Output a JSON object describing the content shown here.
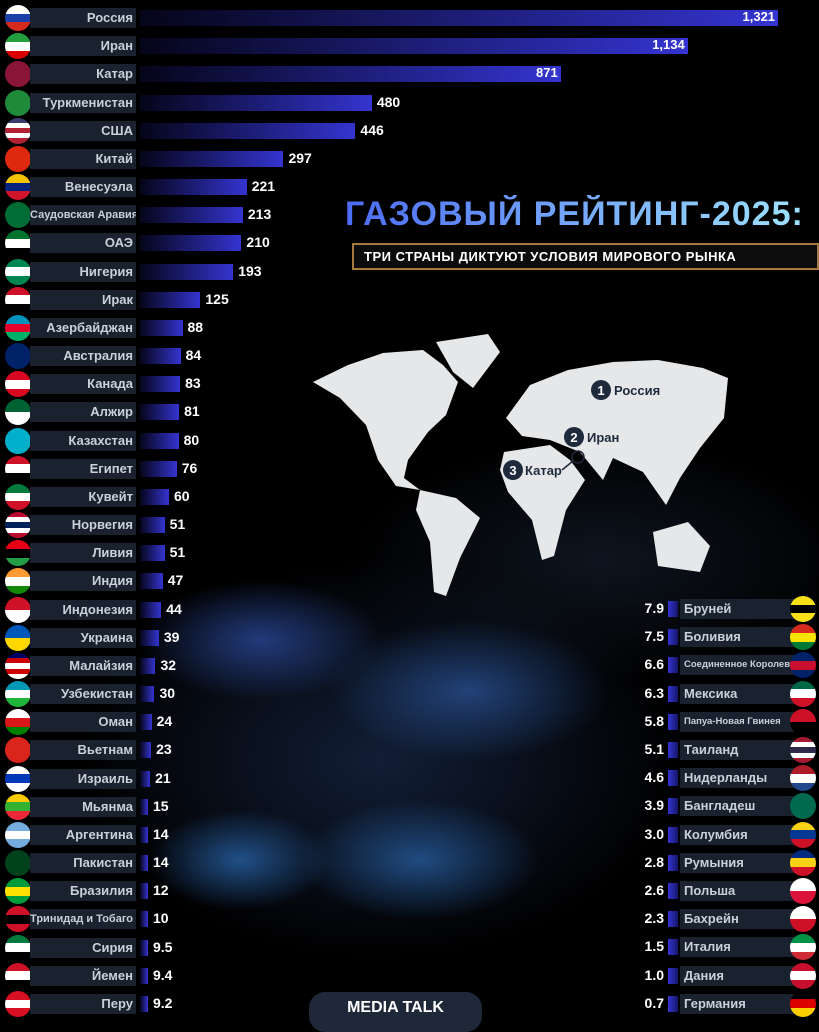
{
  "title": "ГАЗОВЫЙ РЕЙТИНГ-2025:",
  "subtitle": "ТРИ СТРАНЫ ДИКТУЮТ УСЛОВИЯ МИРОВОГО РЫНКА",
  "footer": "MEDIA TALK",
  "colors": {
    "bar_start": "#05051a",
    "bar_end": "#3434d0",
    "label_bg": "#1a2230",
    "title_from": "#4c6cf5",
    "title_to": "#9ee3ff",
    "accent_border": "#a57a3c"
  },
  "map": {
    "markers": [
      {
        "rank": "1",
        "name": "Россия"
      },
      {
        "rank": "2",
        "name": "Иран"
      },
      {
        "rank": "3",
        "name": "Катар"
      }
    ]
  },
  "chart_data": {
    "type": "bar",
    "orientation": "horizontal",
    "left": [
      {
        "name": "Россия",
        "value": 1321,
        "label": "1,321",
        "flag": [
          "#fff",
          "#1c3fa8",
          "#d52b1e"
        ]
      },
      {
        "name": "Иран",
        "value": 1134,
        "label": "1,134",
        "flag": [
          "#239f40",
          "#fff",
          "#da0000"
        ]
      },
      {
        "name": "Катар",
        "value": 871,
        "label": "871",
        "flag": [
          "#8a1538"
        ]
      },
      {
        "name": "Туркменистан",
        "value": 480,
        "label": "480",
        "flag": [
          "#1f8a3a"
        ]
      },
      {
        "name": "США",
        "value": 446,
        "label": "446",
        "flag": [
          "#3c3b6e",
          "#fff",
          "#b22234",
          "#fff",
          "#b22234"
        ]
      },
      {
        "name": "Китай",
        "value": 297,
        "label": "297",
        "flag": [
          "#de2910"
        ]
      },
      {
        "name": "Венесуэла",
        "value": 221,
        "label": "221",
        "flag": [
          "#f4c300",
          "#00247d",
          "#cf142b"
        ]
      },
      {
        "name": "Саудовская Аравия",
        "value": 213,
        "label": "213",
        "flag": [
          "#006c35"
        ]
      },
      {
        "name": "ОАЭ",
        "value": 210,
        "label": "210",
        "flag": [
          "#00732f",
          "#fff",
          "#000"
        ]
      },
      {
        "name": "Нигерия",
        "value": 193,
        "label": "193",
        "flag": [
          "#008751",
          "#fff",
          "#008751"
        ]
      },
      {
        "name": "Ирак",
        "value": 125,
        "label": "125",
        "flag": [
          "#ce1126",
          "#fff",
          "#000"
        ]
      },
      {
        "name": "Азербайджан",
        "value": 88,
        "label": "88",
        "flag": [
          "#0092bc",
          "#e4002b",
          "#00af66"
        ]
      },
      {
        "name": "Австралия",
        "value": 84,
        "label": "84",
        "flag": [
          "#012169"
        ]
      },
      {
        "name": "Канада",
        "value": 83,
        "label": "83",
        "flag": [
          "#d80621",
          "#fff",
          "#d80621"
        ]
      },
      {
        "name": "Алжир",
        "value": 81,
        "label": "81",
        "flag": [
          "#006233",
          "#fff"
        ]
      },
      {
        "name": "Казахстан",
        "value": 80,
        "label": "80",
        "flag": [
          "#00afca"
        ]
      },
      {
        "name": "Египет",
        "value": 76,
        "label": "76",
        "flag": [
          "#ce1126",
          "#fff",
          "#000"
        ]
      },
      {
        "name": "Кувейт",
        "value": 60,
        "label": "60",
        "flag": [
          "#007a3d",
          "#fff",
          "#ce1126"
        ]
      },
      {
        "name": "Норвегия",
        "value": 51,
        "label": "51",
        "flag": [
          "#ba0c2f",
          "#fff",
          "#00205b",
          "#fff",
          "#ba0c2f"
        ]
      },
      {
        "name": "Ливия",
        "value": 51,
        "label": "51",
        "flag": [
          "#e70013",
          "#000",
          "#239e46"
        ]
      },
      {
        "name": "Индия",
        "value": 47,
        "label": "47",
        "flag": [
          "#ff9933",
          "#fff",
          "#138808"
        ]
      },
      {
        "name": "Индонезия",
        "value": 44,
        "label": "44",
        "flag": [
          "#ce1126",
          "#fff"
        ]
      },
      {
        "name": "Украина",
        "value": 39,
        "label": "39",
        "flag": [
          "#0057b7",
          "#ffd700"
        ]
      },
      {
        "name": "Малайзия",
        "value": 32,
        "label": "32",
        "flag": [
          "#010066",
          "#cc0001",
          "#fff",
          "#cc0001",
          "#fff"
        ]
      },
      {
        "name": "Узбекистан",
        "value": 30,
        "label": "30",
        "flag": [
          "#0099b5",
          "#fff",
          "#1eb53a"
        ]
      },
      {
        "name": "Оман",
        "value": 24,
        "label": "24",
        "flag": [
          "#fff",
          "#db161b",
          "#008000"
        ]
      },
      {
        "name": "Вьетнам",
        "value": 23,
        "label": "23",
        "flag": [
          "#da251d"
        ]
      },
      {
        "name": "Израиль",
        "value": 21,
        "label": "21",
        "flag": [
          "#fff",
          "#0038b8",
          "#fff"
        ]
      },
      {
        "name": "Мьянма",
        "value": 15,
        "label": "15",
        "flag": [
          "#fecb00",
          "#34b233",
          "#ea2839"
        ]
      },
      {
        "name": "Аргентина",
        "value": 14,
        "label": "14",
        "flag": [
          "#74acdf",
          "#fff",
          "#74acdf"
        ]
      },
      {
        "name": "Пакистан",
        "value": 14,
        "label": "14",
        "flag": [
          "#01411c"
        ]
      },
      {
        "name": "Бразилия",
        "value": 12,
        "label": "12",
        "flag": [
          "#009c3b",
          "#ffdf00",
          "#009c3b"
        ]
      },
      {
        "name": "Тринидад и Тобаго",
        "value": 10,
        "label": "10",
        "flag": [
          "#ce1126",
          "#000",
          "#ce1126"
        ]
      },
      {
        "name": "Сирия",
        "value": 9.5,
        "label": "9.5",
        "flag": [
          "#007a3d",
          "#fff",
          "#000"
        ]
      },
      {
        "name": "Йемен",
        "value": 9.4,
        "label": "9.4",
        "flag": [
          "#ce1126",
          "#fff",
          "#000"
        ]
      },
      {
        "name": "Перу",
        "value": 9.2,
        "label": "9.2",
        "flag": [
          "#d91023",
          "#fff",
          "#d91023"
        ]
      }
    ],
    "right": [
      {
        "name": "Бруней",
        "value": 7.9,
        "label": "7.9",
        "flag": [
          "#f7e017",
          "#000",
          "#f7e017"
        ]
      },
      {
        "name": "Боливия",
        "value": 7.5,
        "label": "7.5",
        "flag": [
          "#d52b1e",
          "#f9e300",
          "#007934"
        ]
      },
      {
        "name": "Соединенное Королевство",
        "value": 6.6,
        "label": "6.6",
        "flag": [
          "#012169",
          "#c8102e",
          "#012169"
        ]
      },
      {
        "name": "Мексика",
        "value": 6.3,
        "label": "6.3",
        "flag": [
          "#006847",
          "#fff",
          "#ce1126"
        ]
      },
      {
        "name": "Папуа-Новая Гвинея",
        "value": 5.8,
        "label": "5.8",
        "flag": [
          "#ce1126",
          "#000"
        ]
      },
      {
        "name": "Таиланд",
        "value": 5.1,
        "label": "5.1",
        "flag": [
          "#a51931",
          "#fff",
          "#2d2a4a",
          "#fff",
          "#a51931"
        ]
      },
      {
        "name": "Нидерланды",
        "value": 4.6,
        "label": "4.6",
        "flag": [
          "#ae1c28",
          "#fff",
          "#21468b"
        ]
      },
      {
        "name": "Бангладеш",
        "value": 3.9,
        "label": "3.9",
        "flag": [
          "#006a4e"
        ]
      },
      {
        "name": "Колумбия",
        "value": 3.0,
        "label": "3.0",
        "flag": [
          "#fcd116",
          "#003893",
          "#ce1126"
        ]
      },
      {
        "name": "Румыния",
        "value": 2.8,
        "label": "2.8",
        "flag": [
          "#002b7f",
          "#fcd116",
          "#ce1126"
        ]
      },
      {
        "name": "Польша",
        "value": 2.6,
        "label": "2.6",
        "flag": [
          "#fff",
          "#dc143c"
        ]
      },
      {
        "name": "Бахрейн",
        "value": 2.3,
        "label": "2.3",
        "flag": [
          "#fff",
          "#ce1126"
        ]
      },
      {
        "name": "Италия",
        "value": 1.5,
        "label": "1.5",
        "flag": [
          "#009246",
          "#fff",
          "#ce2b37"
        ]
      },
      {
        "name": "Дания",
        "value": 1.0,
        "label": "1.0",
        "flag": [
          "#c8102e",
          "#fff",
          "#c8102e"
        ]
      },
      {
        "name": "Германия",
        "value": 0.7,
        "label": "0.7",
        "flag": [
          "#000",
          "#dd0000",
          "#ffce00"
        ]
      }
    ]
  }
}
